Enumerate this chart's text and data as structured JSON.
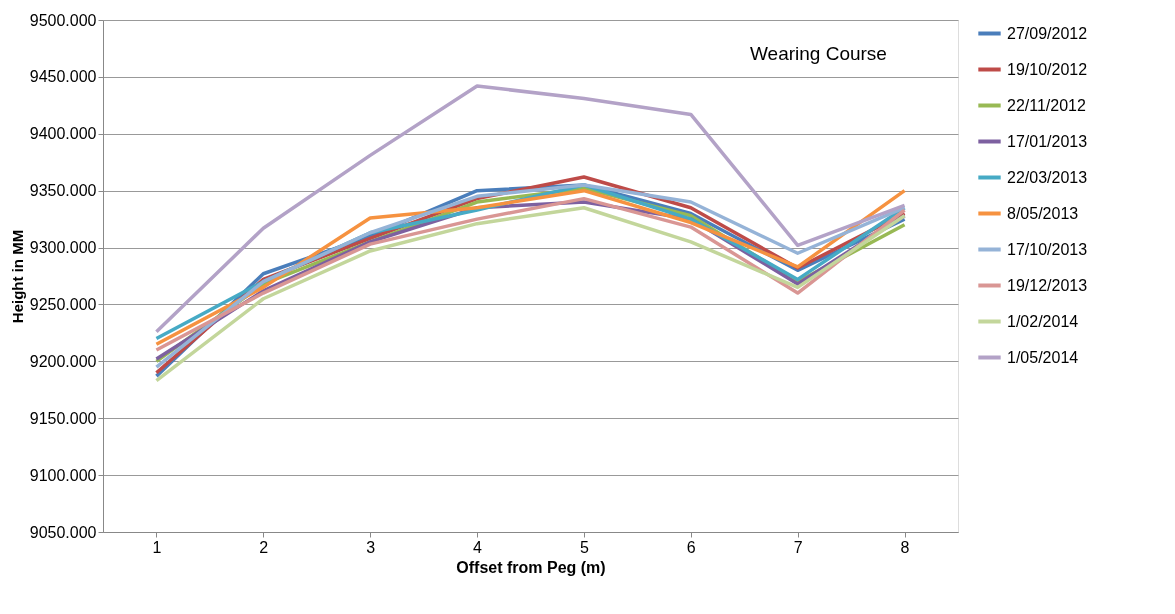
{
  "chart_data": {
    "type": "line",
    "xlabel": "Offset from Peg (m)",
    "ylabel": "Height in MM",
    "categories": [
      "1",
      "2",
      "3",
      "4",
      "5",
      "6",
      "7",
      "8"
    ],
    "series": [
      {
        "name": "27/09/2012",
        "color": "#4a7ebb",
        "values": [
          9187,
          9277,
          9310,
          9350,
          9355,
          9330,
          9280,
          9325
        ]
      },
      {
        "name": "19/10/2012",
        "color": "#be4b48",
        "values": [
          9190,
          9272,
          9308,
          9343,
          9362,
          9335,
          9282,
          9330
        ]
      },
      {
        "name": "22/11/2012",
        "color": "#98b954",
        "values": [
          9200,
          9268,
          9305,
          9340,
          9352,
          9328,
          9270,
          9320
        ]
      },
      {
        "name": "17/01/2013",
        "color": "#7d60a0",
        "values": [
          9202,
          9262,
          9305,
          9335,
          9340,
          9325,
          9268,
          9328
        ]
      },
      {
        "name": "22/03/2013",
        "color": "#46aac5",
        "values": [
          9220,
          9270,
          9313,
          9333,
          9355,
          9325,
          9272,
          9335
        ]
      },
      {
        "name": "8/05/2013",
        "color": "#f69240",
        "values": [
          9215,
          9265,
          9326,
          9335,
          9350,
          9322,
          9283,
          9350
        ]
      },
      {
        "name": "17/10/2013",
        "color": "#95b3d7",
        "values": [
          9195,
          9270,
          9313,
          9345,
          9355,
          9340,
          9295,
          9335
        ]
      },
      {
        "name": "19/12/2013",
        "color": "#d99694",
        "values": [
          9210,
          9260,
          9303,
          9325,
          9343,
          9318,
          9260,
          9333
        ]
      },
      {
        "name": "1/02/2014",
        "color": "#c3d69b",
        "values": [
          9183,
          9255,
          9297,
          9321,
          9335,
          9305,
          9265,
          9328
        ]
      },
      {
        "name": "1/05/2014",
        "color": "#b3a2c7",
        "values": [
          9226,
          9317,
          9381,
          9442,
          9431,
          9417,
          9302,
          9337
        ]
      }
    ],
    "ylim": [
      9050,
      9500
    ],
    "yticks": [
      {
        "value": 9050,
        "label": "9050.000"
      },
      {
        "value": 9100,
        "label": "9100.000"
      },
      {
        "value": 9150,
        "label": "9150.000"
      },
      {
        "value": 9200,
        "label": "9200.000"
      },
      {
        "value": 9250,
        "label": "9250.000"
      },
      {
        "value": 9300,
        "label": "9300.000"
      },
      {
        "value": 9350,
        "label": "9350.000"
      },
      {
        "value": 9400,
        "label": "9400.000"
      },
      {
        "value": 9450,
        "label": "9450.000"
      },
      {
        "value": 9500,
        "label": "9500.000"
      }
    ],
    "grid": "y",
    "legend": "right",
    "marker": "none",
    "line_style": "solid",
    "annotations": [
      "Wearing Course"
    ]
  }
}
